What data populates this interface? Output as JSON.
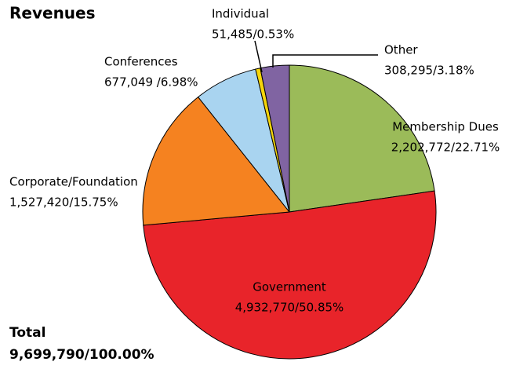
{
  "chart_data": {
    "type": "pie",
    "title": "Revenues",
    "categories": [
      "Membership Dues",
      "Government",
      "Corporate/Foundation",
      "Conferences",
      "Individual",
      "Other"
    ],
    "values": [
      2202772,
      4932770,
      1527420,
      677049,
      51485,
      308295
    ],
    "value_labels": [
      "2,202,772/22.71%",
      "4,932,770/50.85%",
      "1,527,420/15.75%",
      "677,049 /6.98%",
      "51,485/0.53%",
      "308,295/3.18%"
    ],
    "colors": [
      "#9bbb59",
      "#e8242a",
      "#f58220",
      "#a9d4f0",
      "#f5d50b",
      "#8064a2"
    ],
    "total_title": "Total",
    "total": 9699790,
    "total_label": "9,699,790/100.00%"
  }
}
